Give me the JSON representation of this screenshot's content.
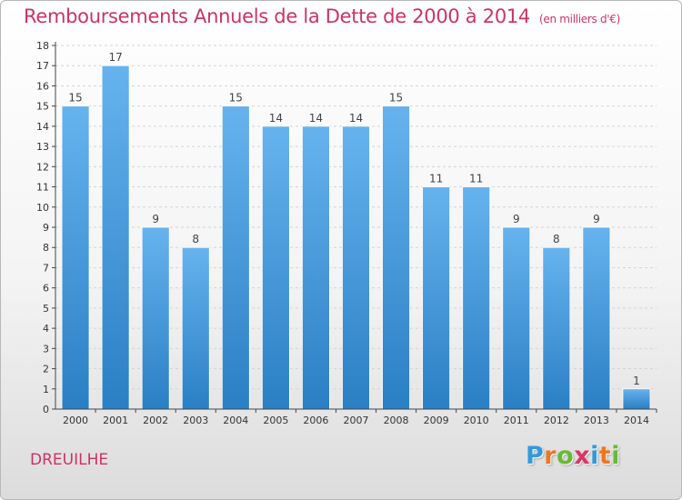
{
  "header": {
    "title": "Remboursements Annuels de la Dette de 2000 à 2014",
    "unit": "(en milliers d'€)"
  },
  "footer": {
    "city": "DREUILHE",
    "logo_letters": [
      "P",
      "r",
      "o",
      "x",
      "i",
      "t",
      "i"
    ],
    "logo_colors": [
      "#3399dd",
      "#ee7722",
      "#66bb33",
      "#dd3366",
      "#3399dd",
      "#ee7722",
      "#66bb33"
    ]
  },
  "colors": {
    "bar_top": "#66b3ee",
    "bar_bottom": "#2a7fc4",
    "accent": "#cc3366"
  },
  "chart_data": {
    "type": "bar",
    "title": "Remboursements Annuels de la Dette de 2000 à 2014",
    "xlabel": "",
    "ylabel": "",
    "categories": [
      "2000",
      "2001",
      "2002",
      "2003",
      "2004",
      "2005",
      "2006",
      "2007",
      "2008",
      "2009",
      "2010",
      "2011",
      "2012",
      "2013",
      "2014"
    ],
    "values": [
      15,
      17,
      9,
      8,
      15,
      14,
      14,
      14,
      15,
      11,
      11,
      9,
      8,
      9,
      1
    ],
    "ylim": [
      0,
      18
    ],
    "yticks": [
      "0",
      "1",
      "2",
      "3",
      "4",
      "5",
      "6",
      "7",
      "8",
      "9",
      "10",
      "11",
      "12",
      "13",
      "14",
      "15",
      "16",
      "17",
      "18"
    ]
  }
}
